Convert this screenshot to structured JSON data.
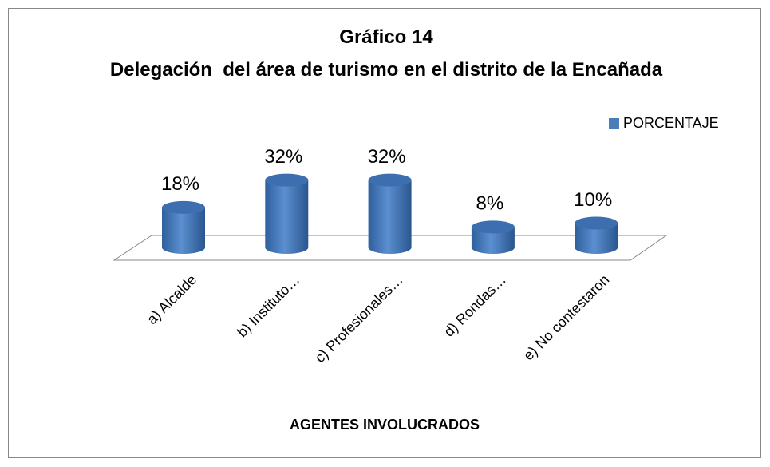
{
  "chart_data": {
    "type": "bar3d",
    "title": "Gráfico 14",
    "subtitle": "Delegación  del área de turismo en el distrito de la Encañada",
    "x_label": "AGENTES INVOLUCRADOS",
    "categories": [
      "a) Alcalde",
      "b) Instituto…",
      "c) Profesionales…",
      "d) Rondas…",
      "e) No contestaron"
    ],
    "series": [
      {
        "name": "PORCENTAJE",
        "color": "#4a7ebb",
        "values": [
          18,
          32,
          32,
          8,
          10
        ],
        "value_labels": [
          "18%",
          "32%",
          "32%",
          "8%",
          "10%"
        ]
      }
    ],
    "legend": "top-right"
  }
}
